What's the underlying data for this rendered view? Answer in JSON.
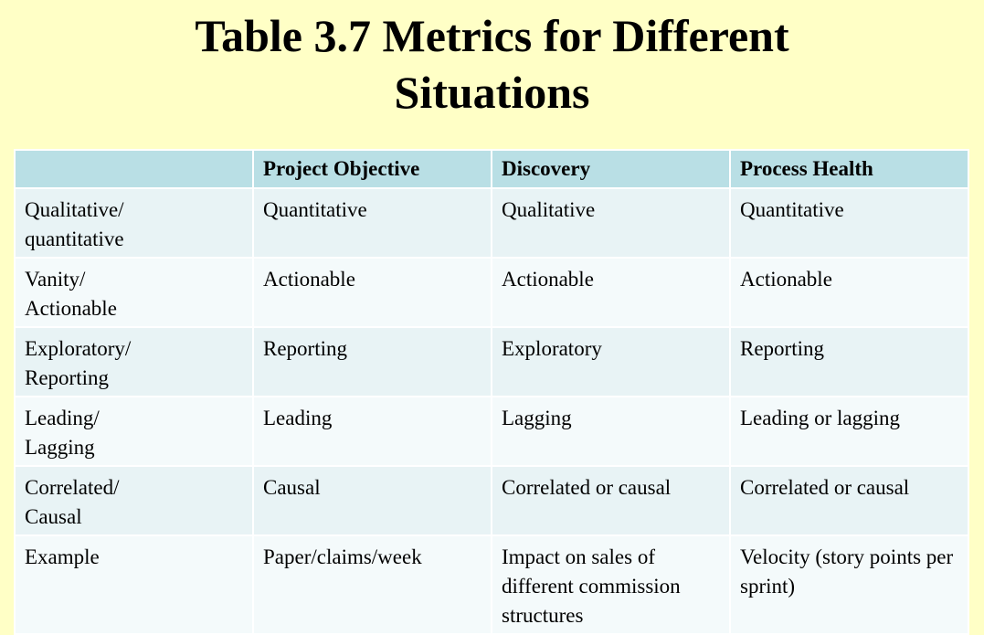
{
  "title": {
    "line1": "Table 3.7 Metrics for Different",
    "line2": "Situations"
  },
  "table": {
    "headers": [
      "",
      "Project Objective",
      "Discovery",
      "Process Health"
    ],
    "rows": [
      {
        "label": [
          "Qualitative/",
          "quantitative"
        ],
        "cells": [
          "Quantitative",
          "Qualitative",
          "Quantitative"
        ]
      },
      {
        "label": [
          "Vanity/",
          "Actionable"
        ],
        "cells": [
          "Actionable",
          "Actionable",
          "Actionable"
        ]
      },
      {
        "label": [
          "Exploratory/",
          "Reporting"
        ],
        "cells": [
          "Reporting",
          "Exploratory",
          "Reporting"
        ]
      },
      {
        "label": [
          "Leading/",
          "Lagging"
        ],
        "cells": [
          "Leading",
          "Lagging",
          "Leading or lagging"
        ]
      },
      {
        "label": [
          "Correlated/",
          "Causal"
        ],
        "cells": [
          "Causal",
          "Correlated or causal",
          "Correlated or causal"
        ]
      },
      {
        "label": [
          "Example"
        ],
        "cells": [
          "Paper/claims/week",
          "Impact on sales of different commission structures",
          "Velocity (story points per sprint)"
        ]
      }
    ]
  },
  "colors": {
    "background": "#ffffc6",
    "header_bg": "#b9dfe5",
    "row_odd_bg": "#e8f3f5",
    "row_even_bg": "#f4fafb"
  }
}
